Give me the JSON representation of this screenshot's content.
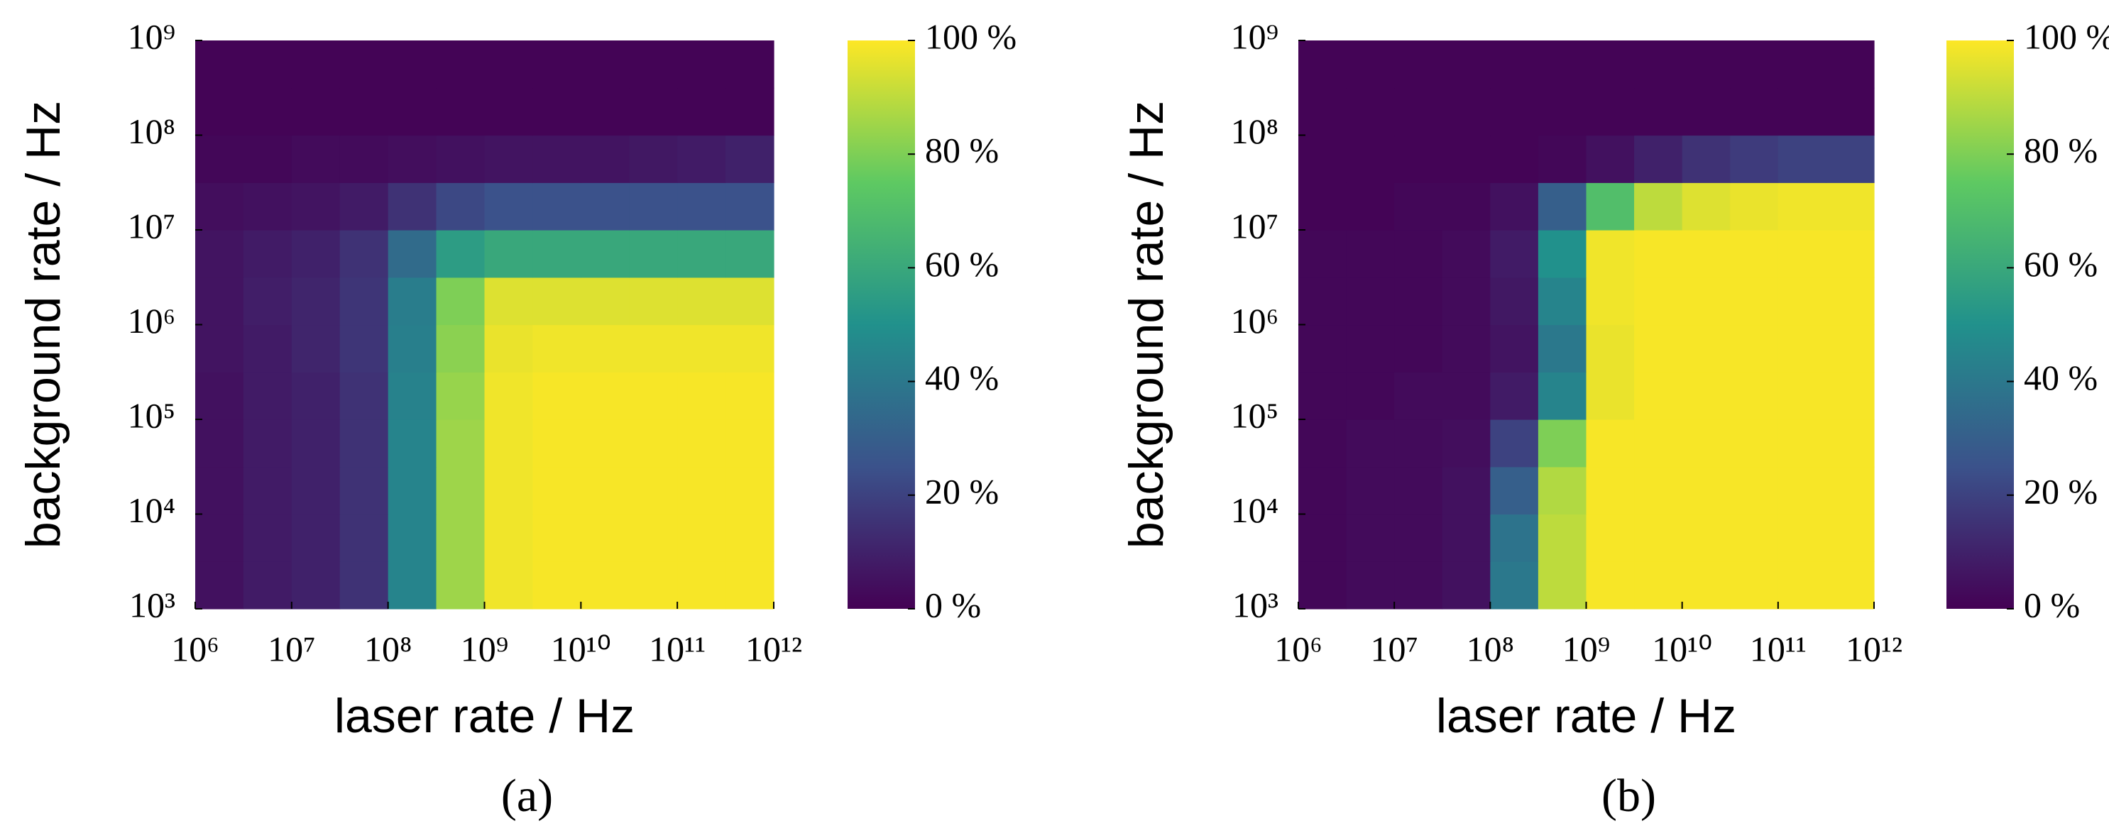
{
  "chart_data": [
    {
      "type": "heatmap",
      "label": "(a)",
      "xlabel": "laser rate / Hz",
      "ylabel": "background rate / Hz",
      "xscale": "log",
      "yscale": "log",
      "xlim": [
        1000000.0,
        1000000000000.0
      ],
      "ylim": [
        1000.0,
        1000000000.0
      ],
      "xticks": [
        {
          "value": 1000000.0,
          "label": "10⁶"
        },
        {
          "value": 10000000.0,
          "label": "10⁷"
        },
        {
          "value": 100000000.0,
          "label": "10⁸"
        },
        {
          "value": 1000000000.0,
          "label": "10⁹"
        },
        {
          "value": 10000000000.0,
          "label": "10¹⁰"
        },
        {
          "value": 100000000000.0,
          "label": "10¹¹"
        },
        {
          "value": 1000000000000.0,
          "label": "10¹²"
        }
      ],
      "yticks": [
        {
          "value": 1000.0,
          "label": "10³"
        },
        {
          "value": 10000.0,
          "label": "10⁴"
        },
        {
          "value": 100000.0,
          "label": "10⁵"
        },
        {
          "value": 1000000.0,
          "label": "10⁶"
        },
        {
          "value": 10000000.0,
          "label": "10⁷"
        },
        {
          "value": 100000000.0,
          "label": "10⁸"
        },
        {
          "value": 1000000000.0,
          "label": "10⁹"
        }
      ],
      "xbins": [
        1000000.0,
        3160000.0,
        10000000.0,
        31600000.0,
        100000000.0,
        316000000.0,
        1000000000.0,
        3160000000.0,
        10000000000.0,
        31600000000.0,
        100000000000.0,
        316000000000.0,
        1000000000000.0
      ],
      "ybins": [
        1000.0,
        3160.0,
        10000.0,
        31600.0,
        100000.0,
        316000.0,
        1000000.0,
        3160000.0,
        10000000.0,
        31600000.0,
        100000000.0,
        316000000.0,
        1000000000.0
      ],
      "z": [
        [
          5,
          8,
          10,
          15,
          45,
          85,
          98,
          99,
          99,
          99,
          99,
          99
        ],
        [
          5,
          8,
          10,
          15,
          45,
          85,
          98,
          99,
          99,
          99,
          99,
          99
        ],
        [
          5,
          8,
          10,
          15,
          45,
          85,
          98,
          99,
          99,
          99,
          99,
          99
        ],
        [
          5,
          8,
          10,
          15,
          45,
          85,
          98,
          99,
          99,
          99,
          99,
          99
        ],
        [
          5,
          8,
          10,
          15,
          44,
          84,
          98,
          99,
          99,
          99,
          99,
          99
        ],
        [
          6,
          8,
          11,
          16,
          43,
          82,
          97,
          98,
          98,
          98,
          98,
          98
        ],
        [
          6,
          9,
          11,
          16,
          42,
          80,
          95,
          95,
          95,
          95,
          95,
          95
        ],
        [
          6,
          8,
          10,
          15,
          35,
          55,
          60,
          60,
          60,
          60,
          60,
          60
        ],
        [
          4,
          5,
          6,
          8,
          15,
          22,
          25,
          25,
          25,
          25,
          25,
          25
        ],
        [
          2,
          2,
          3,
          3,
          4,
          5,
          6,
          6,
          6,
          7,
          8,
          10
        ],
        [
          1,
          1,
          1,
          1,
          1,
          1,
          1,
          1,
          1,
          1,
          1,
          1
        ],
        [
          1,
          1,
          1,
          1,
          1,
          1,
          1,
          1,
          1,
          1,
          1,
          1
        ]
      ],
      "colorbar": {
        "lim": [
          0,
          100
        ],
        "ticks": [
          {
            "value": 0,
            "label": "0 %"
          },
          {
            "value": 20,
            "label": "20 %"
          },
          {
            "value": 40,
            "label": "40 %"
          },
          {
            "value": 60,
            "label": "60 %"
          },
          {
            "value": 80,
            "label": "80 %"
          },
          {
            "value": 100,
            "label": "100 %"
          }
        ]
      }
    },
    {
      "type": "heatmap",
      "label": "(b)",
      "xlabel": "laser rate / Hz",
      "ylabel": "background rate / Hz",
      "xscale": "log",
      "yscale": "log",
      "xlim": [
        1000000.0,
        1000000000000.0
      ],
      "ylim": [
        1000.0,
        1000000000.0
      ],
      "xticks": [
        {
          "value": 1000000.0,
          "label": "10⁶"
        },
        {
          "value": 10000000.0,
          "label": "10⁷"
        },
        {
          "value": 100000000.0,
          "label": "10⁸"
        },
        {
          "value": 1000000000.0,
          "label": "10⁹"
        },
        {
          "value": 10000000000.0,
          "label": "10¹⁰"
        },
        {
          "value": 100000000000.0,
          "label": "10¹¹"
        },
        {
          "value": 1000000000000.0,
          "label": "10¹²"
        }
      ],
      "yticks": [
        {
          "value": 1000.0,
          "label": "10³"
        },
        {
          "value": 10000.0,
          "label": "10⁴"
        },
        {
          "value": 100000.0,
          "label": "10⁵"
        },
        {
          "value": 1000000.0,
          "label": "10⁶"
        },
        {
          "value": 10000000.0,
          "label": "10⁷"
        },
        {
          "value": 100000000.0,
          "label": "10⁸"
        },
        {
          "value": 1000000000.0,
          "label": "10⁹"
        }
      ],
      "xbins": [
        1000000.0,
        3160000.0,
        10000000.0,
        31600000.0,
        100000000.0,
        316000000.0,
        1000000000.0,
        3160000000.0,
        10000000000.0,
        31600000000.0,
        100000000000.0,
        316000000000.0,
        1000000000000.0
      ],
      "ybins": [
        1000.0,
        3160.0,
        10000.0,
        31600.0,
        100000.0,
        316000.0,
        1000000.0,
        3160000.0,
        10000000.0,
        31600000.0,
        100000000.0,
        316000000.0,
        1000000000.0
      ],
      "z": [
        [
          2,
          3,
          3,
          5,
          40,
          90,
          99,
          99,
          99,
          99,
          99,
          99
        ],
        [
          2,
          3,
          3,
          5,
          38,
          90,
          99,
          99,
          99,
          99,
          99,
          99
        ],
        [
          2,
          3,
          3,
          5,
          30,
          88,
          99,
          99,
          99,
          99,
          99,
          99
        ],
        [
          2,
          3,
          3,
          4,
          20,
          80,
          99,
          99,
          99,
          99,
          99,
          99
        ],
        [
          2,
          2,
          3,
          3,
          8,
          45,
          97,
          99,
          99,
          99,
          99,
          99
        ],
        [
          2,
          2,
          2,
          3,
          6,
          40,
          97,
          99,
          99,
          99,
          99,
          99
        ],
        [
          2,
          2,
          2,
          3,
          7,
          45,
          98,
          99,
          99,
          99,
          99,
          99
        ],
        [
          2,
          2,
          2,
          3,
          8,
          50,
          98,
          99,
          99,
          99,
          99,
          99
        ],
        [
          1,
          1,
          2,
          2,
          5,
          30,
          70,
          90,
          95,
          97,
          98,
          98
        ],
        [
          1,
          1,
          1,
          1,
          1,
          2,
          5,
          10,
          15,
          18,
          20,
          20
        ],
        [
          1,
          1,
          1,
          1,
          1,
          1,
          1,
          1,
          1,
          1,
          1,
          1
        ],
        [
          1,
          1,
          1,
          1,
          1,
          1,
          1,
          1,
          1,
          1,
          1,
          1
        ]
      ],
      "colorbar": {
        "lim": [
          0,
          100
        ],
        "ticks": [
          {
            "value": 0,
            "label": "0 %"
          },
          {
            "value": 20,
            "label": "20 %"
          },
          {
            "value": 40,
            "label": "40 %"
          },
          {
            "value": 60,
            "label": "60 %"
          },
          {
            "value": 80,
            "label": "80 %"
          },
          {
            "value": 100,
            "label": "100 %"
          }
        ]
      }
    }
  ]
}
